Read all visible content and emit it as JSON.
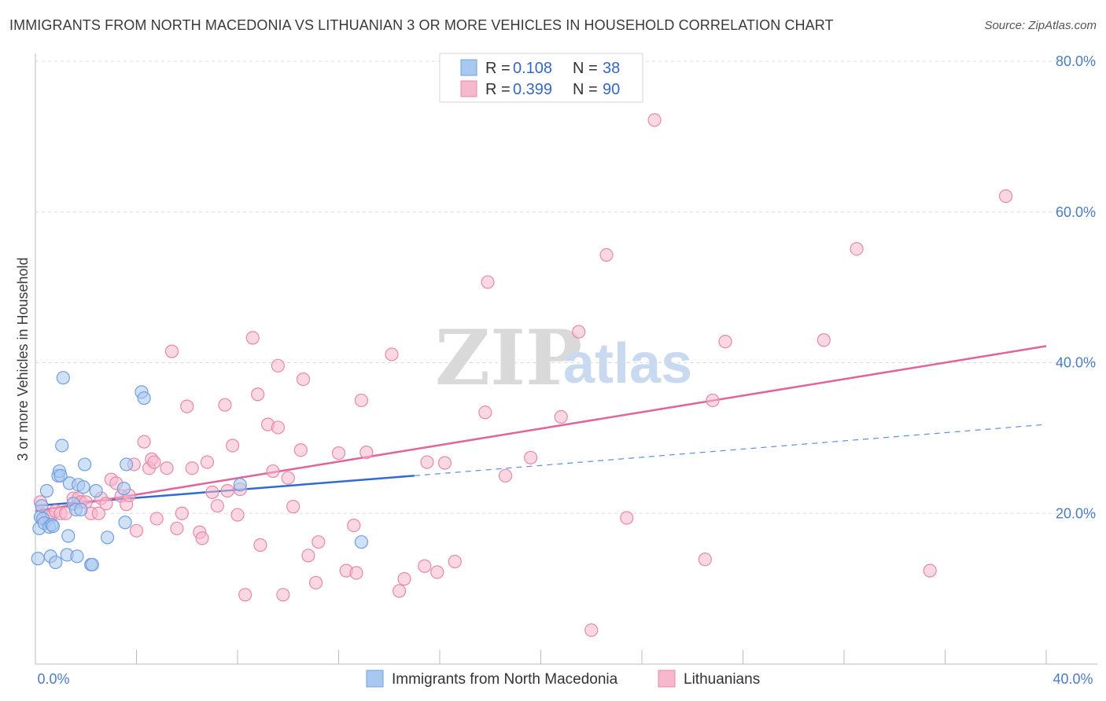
{
  "title": "IMMIGRANTS FROM NORTH MACEDONIA VS LITHUANIAN 3 OR MORE VEHICLES IN HOUSEHOLD CORRELATION CHART",
  "source": "Source: ZipAtlas.com",
  "watermark": {
    "zip": "ZIP",
    "atlas": "atlas"
  },
  "legend_box": {
    "rows": [
      {
        "r_label": "R =",
        "r_value": "0.108",
        "n_label": "N =",
        "n_value": "38",
        "color": "#a9c8f0"
      },
      {
        "r_label": "R =",
        "r_value": "0.399",
        "n_label": "N =",
        "n_value": "90",
        "color": "#f5b8cc"
      }
    ]
  },
  "chart_data": {
    "type": "scatter",
    "title": "IMMIGRANTS FROM NORTH MACEDONIA VS LITHUANIAN 3 OR MORE VEHICLES IN HOUSEHOLD CORRELATION CHART",
    "xlabel": "",
    "ylabel": "3 or more Vehicles in Household",
    "xlim": [
      0,
      40
    ],
    "ylim": [
      0,
      80
    ],
    "x_ticks": [
      "0.0%",
      "40.0%"
    ],
    "y_ticks": [
      "20.0%",
      "40.0%",
      "60.0%",
      "80.0%"
    ],
    "y_tick_values": [
      20,
      40,
      60,
      80
    ],
    "grid": true,
    "legend_placement": "top-center",
    "series": [
      {
        "name": "Immigrants from North Macedonia",
        "color": "#6f9fe0",
        "fill": "#a9c8f0",
        "points": [
          [
            0.1,
            14
          ],
          [
            0.15,
            18
          ],
          [
            0.2,
            19.5
          ],
          [
            0.25,
            21
          ],
          [
            0.3,
            19.3
          ],
          [
            0.35,
            18.7
          ],
          [
            0.45,
            23
          ],
          [
            0.55,
            18.2
          ],
          [
            0.6,
            14.3
          ],
          [
            0.65,
            18.5
          ],
          [
            0.7,
            18.3
          ],
          [
            0.8,
            13.5
          ],
          [
            0.9,
            25
          ],
          [
            0.95,
            25.6
          ],
          [
            1.0,
            25
          ],
          [
            1.05,
            29
          ],
          [
            1.1,
            38
          ],
          [
            1.25,
            14.5
          ],
          [
            1.3,
            17
          ],
          [
            1.35,
            24
          ],
          [
            1.5,
            21.3
          ],
          [
            1.6,
            20.5
          ],
          [
            1.65,
            14.3
          ],
          [
            1.7,
            23.8
          ],
          [
            1.8,
            20.5
          ],
          [
            1.9,
            23.5
          ],
          [
            1.95,
            26.5
          ],
          [
            2.2,
            13.2
          ],
          [
            2.25,
            13.2
          ],
          [
            2.4,
            23
          ],
          [
            2.85,
            16.8
          ],
          [
            3.5,
            23.3
          ],
          [
            3.55,
            18.8
          ],
          [
            3.6,
            26.5
          ],
          [
            4.2,
            36.1
          ],
          [
            4.3,
            35.3
          ],
          [
            8.1,
            23.8
          ],
          [
            12.9,
            16.2
          ]
        ],
        "trend": {
          "x": [
            0,
            15
          ],
          "y": [
            21,
            25
          ]
        },
        "trend_dashed": {
          "x": [
            15,
            40
          ],
          "y": [
            25,
            31.8
          ]
        }
      },
      {
        "name": "Lithuanians",
        "color": "#e888a8",
        "fill": "#f5b8cc",
        "points": [
          [
            0.2,
            21.5
          ],
          [
            0.3,
            19.3
          ],
          [
            0.5,
            19.6
          ],
          [
            0.6,
            19.5
          ],
          [
            0.8,
            20.3
          ],
          [
            1.0,
            20
          ],
          [
            1.2,
            20
          ],
          [
            1.5,
            22
          ],
          [
            1.7,
            22
          ],
          [
            1.8,
            21.5
          ],
          [
            2.0,
            21.5
          ],
          [
            2.2,
            20
          ],
          [
            2.5,
            20
          ],
          [
            2.6,
            22
          ],
          [
            2.8,
            21.3
          ],
          [
            3.0,
            24.5
          ],
          [
            3.2,
            24
          ],
          [
            3.4,
            22.3
          ],
          [
            3.6,
            21.2
          ],
          [
            3.7,
            22.4
          ],
          [
            3.9,
            26.5
          ],
          [
            4.0,
            17.7
          ],
          [
            4.3,
            29.5
          ],
          [
            4.5,
            26
          ],
          [
            4.6,
            27.2
          ],
          [
            4.7,
            26.8
          ],
          [
            4.8,
            19.3
          ],
          [
            5.2,
            26
          ],
          [
            5.4,
            41.5
          ],
          [
            5.6,
            18
          ],
          [
            5.8,
            20
          ],
          [
            6.0,
            34.2
          ],
          [
            6.2,
            26
          ],
          [
            6.5,
            17.5
          ],
          [
            6.6,
            16.7
          ],
          [
            6.8,
            26.8
          ],
          [
            7.0,
            22.8
          ],
          [
            7.2,
            21
          ],
          [
            7.5,
            34.4
          ],
          [
            7.6,
            23
          ],
          [
            7.8,
            29
          ],
          [
            8.0,
            19.8
          ],
          [
            8.1,
            23.2
          ],
          [
            8.3,
            9.2
          ],
          [
            8.6,
            43.3
          ],
          [
            8.8,
            35.8
          ],
          [
            8.9,
            15.8
          ],
          [
            9.2,
            31.8
          ],
          [
            9.4,
            25.6
          ],
          [
            9.6,
            39.6
          ],
          [
            9.6,
            31.4
          ],
          [
            9.8,
            9.2
          ],
          [
            10.0,
            24.7
          ],
          [
            10.2,
            20.9
          ],
          [
            10.5,
            28.4
          ],
          [
            10.6,
            37.8
          ],
          [
            10.8,
            14.4
          ],
          [
            11.1,
            10.8
          ],
          [
            11.2,
            16.2
          ],
          [
            12.0,
            28
          ],
          [
            12.3,
            12.4
          ],
          [
            12.6,
            18.4
          ],
          [
            12.7,
            12.1
          ],
          [
            12.9,
            35
          ],
          [
            13.1,
            28.1
          ],
          [
            14.1,
            41.1
          ],
          [
            14.4,
            9.7
          ],
          [
            14.6,
            11.3
          ],
          [
            15.4,
            13
          ],
          [
            15.5,
            26.8
          ],
          [
            15.9,
            12.2
          ],
          [
            16.2,
            26.7
          ],
          [
            16.6,
            13.6
          ],
          [
            17.8,
            33.4
          ],
          [
            17.9,
            50.7
          ],
          [
            18.6,
            25
          ],
          [
            19.6,
            27.4
          ],
          [
            20.8,
            32.8
          ],
          [
            21.5,
            44.1
          ],
          [
            22.0,
            4.5
          ],
          [
            22.6,
            54.3
          ],
          [
            23.4,
            19.4
          ],
          [
            24.5,
            72.2
          ],
          [
            26.5,
            13.9
          ],
          [
            26.8,
            35
          ],
          [
            27.3,
            42.8
          ],
          [
            31.2,
            43
          ],
          [
            32.5,
            55.1
          ],
          [
            35.4,
            12.4
          ],
          [
            38.4,
            62.1
          ]
        ],
        "trend": {
          "x": [
            0,
            40
          ],
          "y": [
            20.3,
            42.2
          ]
        }
      }
    ]
  }
}
